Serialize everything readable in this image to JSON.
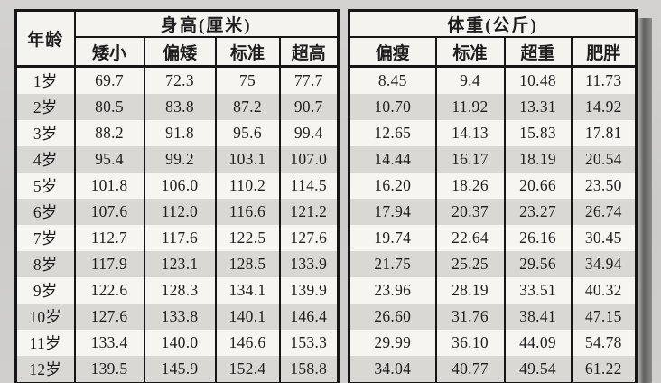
{
  "page": {
    "background_color": "#cfcecc",
    "border_color": "#161616",
    "cell_color": "#f6f5f2",
    "stripe_color": "#d9d8d5",
    "shadow_bar_color": "#5f5f5d"
  },
  "table": {
    "age_header": "年龄",
    "height_group_header": "身高(厘米)",
    "weight_group_header": "体重(公斤)",
    "height_subheaders": [
      "矮小",
      "偏矮",
      "标准",
      "超高"
    ],
    "weight_subheaders": [
      "偏瘦",
      "标准",
      "超重",
      "肥胖"
    ],
    "rows": [
      {
        "age": "1岁",
        "height": [
          "69.7",
          "72.3",
          "75",
          "77.7"
        ],
        "weight": [
          "8.45",
          "9.4",
          "10.48",
          "11.73"
        ]
      },
      {
        "age": "2岁",
        "height": [
          "80.5",
          "83.8",
          "87.2",
          "90.7"
        ],
        "weight": [
          "10.70",
          "11.92",
          "13.31",
          "14.92"
        ]
      },
      {
        "age": "3岁",
        "height": [
          "88.2",
          "91.8",
          "95.6",
          "99.4"
        ],
        "weight": [
          "12.65",
          "14.13",
          "15.83",
          "17.81"
        ]
      },
      {
        "age": "4岁",
        "height": [
          "95.4",
          "99.2",
          "103.1",
          "107.0"
        ],
        "weight": [
          "14.44",
          "16.17",
          "18.19",
          "20.54"
        ]
      },
      {
        "age": "5岁",
        "height": [
          "101.8",
          "106.0",
          "110.2",
          "114.5"
        ],
        "weight": [
          "16.20",
          "18.26",
          "20.66",
          "23.50"
        ]
      },
      {
        "age": "6岁",
        "height": [
          "107.6",
          "112.0",
          "116.6",
          "121.2"
        ],
        "weight": [
          "17.94",
          "20.37",
          "23.27",
          "26.74"
        ]
      },
      {
        "age": "7岁",
        "height": [
          "112.7",
          "117.6",
          "122.5",
          "127.6"
        ],
        "weight": [
          "19.74",
          "22.64",
          "26.16",
          "30.45"
        ]
      },
      {
        "age": "8岁",
        "height": [
          "117.9",
          "123.1",
          "128.5",
          "133.9"
        ],
        "weight": [
          "21.75",
          "25.25",
          "29.56",
          "34.94"
        ]
      },
      {
        "age": "9岁",
        "height": [
          "122.6",
          "128.3",
          "134.1",
          "139.9"
        ],
        "weight": [
          "23.96",
          "28.19",
          "33.51",
          "40.32"
        ]
      },
      {
        "age": "10岁",
        "height": [
          "127.6",
          "133.8",
          "140.1",
          "146.4"
        ],
        "weight": [
          "26.60",
          "31.76",
          "38.41",
          "47.15"
        ]
      },
      {
        "age": "11岁",
        "height": [
          "133.4",
          "140.0",
          "146.6",
          "153.3"
        ],
        "weight": [
          "29.99",
          "36.10",
          "44.09",
          "54.78"
        ]
      },
      {
        "age": "12岁",
        "height": [
          "139.5",
          "145.9",
          "152.4",
          "158.8"
        ],
        "weight": [
          "34.04",
          "40.77",
          "49.54",
          "61.22"
        ]
      }
    ]
  }
}
